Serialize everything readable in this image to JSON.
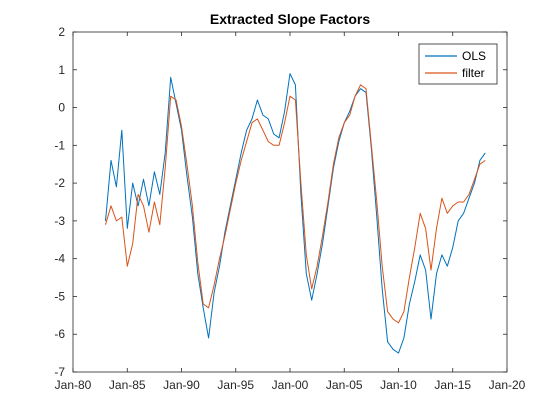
{
  "chart_data": {
    "type": "line",
    "title": "Extracted Slope Factors",
    "xlabel": "",
    "ylabel": "",
    "xlim": [
      "Jan-80",
      "Jan-20"
    ],
    "ylim": [
      -7,
      2
    ],
    "x_tick_labels": [
      "Jan-80",
      "Jan-85",
      "Jan-90",
      "Jan-95",
      "Jan-00",
      "Jan-05",
      "Jan-10",
      "Jan-15",
      "Jan-20"
    ],
    "y_ticks": [
      2,
      1,
      0,
      -1,
      -2,
      -3,
      -4,
      -5,
      -6,
      -7
    ],
    "grid": false,
    "legend_position": "top-right",
    "series": [
      {
        "name": "OLS",
        "color": "#0072BD",
        "points": [
          [
            "Jan-83",
            -3.0
          ],
          [
            "Jul-83",
            -1.4
          ],
          [
            "Jan-84",
            -2.1
          ],
          [
            "Jul-84",
            -0.6
          ],
          [
            "Jan-85",
            -3.2
          ],
          [
            "Jul-85",
            -2.0
          ],
          [
            "Jan-86",
            -2.6
          ],
          [
            "Jul-86",
            -1.9
          ],
          [
            "Jan-87",
            -2.6
          ],
          [
            "Jul-87",
            -1.7
          ],
          [
            "Jan-88",
            -2.3
          ],
          [
            "Jul-88",
            -1.2
          ],
          [
            "Jan-89",
            0.8
          ],
          [
            "Jul-89",
            0.1
          ],
          [
            "Jan-90",
            -0.6
          ],
          [
            "Jul-90",
            -1.8
          ],
          [
            "Jan-91",
            -2.9
          ],
          [
            "Jul-91",
            -4.4
          ],
          [
            "Jan-92",
            -5.3
          ],
          [
            "Jul-92",
            -6.1
          ],
          [
            "Jan-93",
            -4.9
          ],
          [
            "Jul-93",
            -4.2
          ],
          [
            "Jan-94",
            -3.3
          ],
          [
            "Jul-94",
            -2.6
          ],
          [
            "Jan-95",
            -1.9
          ],
          [
            "Jul-95",
            -1.2
          ],
          [
            "Jan-96",
            -0.6
          ],
          [
            "Jul-96",
            -0.3
          ],
          [
            "Jan-97",
            0.2
          ],
          [
            "Jul-97",
            -0.2
          ],
          [
            "Jan-98",
            -0.3
          ],
          [
            "Jul-98",
            -0.7
          ],
          [
            "Jan-99",
            -0.8
          ],
          [
            "Jul-99",
            -0.1
          ],
          [
            "Jan-00",
            0.9
          ],
          [
            "Jul-00",
            0.6
          ],
          [
            "Jan-01",
            -2.3
          ],
          [
            "Jul-01",
            -4.4
          ],
          [
            "Jan-02",
            -5.1
          ],
          [
            "Jul-02",
            -4.4
          ],
          [
            "Jan-03",
            -3.6
          ],
          [
            "Jul-03",
            -2.6
          ],
          [
            "Jan-04",
            -1.6
          ],
          [
            "Jul-04",
            -0.9
          ],
          [
            "Jan-05",
            -0.4
          ],
          [
            "Jul-05",
            -0.1
          ],
          [
            "Jan-06",
            0.3
          ],
          [
            "Jul-06",
            0.5
          ],
          [
            "Jan-07",
            0.4
          ],
          [
            "Jul-07",
            -1.1
          ],
          [
            "Jan-08",
            -2.9
          ],
          [
            "Jul-08",
            -4.8
          ],
          [
            "Jan-09",
            -6.2
          ],
          [
            "Jul-09",
            -6.4
          ],
          [
            "Jan-10",
            -6.5
          ],
          [
            "Jul-10",
            -6.1
          ],
          [
            "Jan-11",
            -5.2
          ],
          [
            "Jul-11",
            -4.6
          ],
          [
            "Jan-12",
            -3.9
          ],
          [
            "Jul-12",
            -4.3
          ],
          [
            "Jan-13",
            -5.6
          ],
          [
            "Jul-13",
            -4.4
          ],
          [
            "Jan-14",
            -3.9
          ],
          [
            "Jul-14",
            -4.2
          ],
          [
            "Jan-15",
            -3.7
          ],
          [
            "Jul-15",
            -3.0
          ],
          [
            "Jan-16",
            -2.8
          ],
          [
            "Jul-16",
            -2.4
          ],
          [
            "Jan-17",
            -2.0
          ],
          [
            "Jul-17",
            -1.4
          ],
          [
            "Jan-18",
            -1.2
          ]
        ]
      },
      {
        "name": "filter",
        "color": "#D95319",
        "points": [
          [
            "Jan-83",
            -3.1
          ],
          [
            "Jul-83",
            -2.6
          ],
          [
            "Jan-84",
            -3.0
          ],
          [
            "Jul-84",
            -2.9
          ],
          [
            "Jan-85",
            -4.2
          ],
          [
            "Jul-85",
            -3.6
          ],
          [
            "Jan-86",
            -2.3
          ],
          [
            "Jul-86",
            -2.6
          ],
          [
            "Jan-87",
            -3.3
          ],
          [
            "Jul-87",
            -2.5
          ],
          [
            "Jan-88",
            -3.1
          ],
          [
            "Jul-88",
            -1.6
          ],
          [
            "Jan-89",
            0.3
          ],
          [
            "Jul-89",
            0.2
          ],
          [
            "Jan-90",
            -0.5
          ],
          [
            "Jul-90",
            -1.5
          ],
          [
            "Jan-91",
            -2.6
          ],
          [
            "Jul-91",
            -4.1
          ],
          [
            "Jan-92",
            -5.2
          ],
          [
            "Jul-92",
            -5.3
          ],
          [
            "Jan-93",
            -4.7
          ],
          [
            "Jul-93",
            -4.0
          ],
          [
            "Jan-94",
            -3.4
          ],
          [
            "Jul-94",
            -2.7
          ],
          [
            "Jan-95",
            -2.0
          ],
          [
            "Jul-95",
            -1.4
          ],
          [
            "Jan-96",
            -0.9
          ],
          [
            "Jul-96",
            -0.4
          ],
          [
            "Jan-97",
            -0.3
          ],
          [
            "Jul-97",
            -0.6
          ],
          [
            "Jan-98",
            -0.9
          ],
          [
            "Jul-98",
            -1.0
          ],
          [
            "Jan-99",
            -1.0
          ],
          [
            "Jul-99",
            -0.4
          ],
          [
            "Jan-00",
            0.3
          ],
          [
            "Jul-00",
            0.2
          ],
          [
            "Jan-01",
            -2.0
          ],
          [
            "Jul-01",
            -3.9
          ],
          [
            "Jan-02",
            -4.8
          ],
          [
            "Jul-02",
            -4.2
          ],
          [
            "Jan-03",
            -3.4
          ],
          [
            "Jul-03",
            -2.5
          ],
          [
            "Jan-04",
            -1.5
          ],
          [
            "Jul-04",
            -0.8
          ],
          [
            "Jan-05",
            -0.4
          ],
          [
            "Jul-05",
            -0.2
          ],
          [
            "Jan-06",
            0.3
          ],
          [
            "Jul-06",
            0.6
          ],
          [
            "Jan-07",
            0.5
          ],
          [
            "Jul-07",
            -1.0
          ],
          [
            "Jan-08",
            -2.5
          ],
          [
            "Jul-08",
            -4.2
          ],
          [
            "Jan-09",
            -5.4
          ],
          [
            "Jul-09",
            -5.6
          ],
          [
            "Jan-10",
            -5.7
          ],
          [
            "Jul-10",
            -5.4
          ],
          [
            "Jan-11",
            -4.5
          ],
          [
            "Jul-11",
            -3.7
          ],
          [
            "Jan-12",
            -2.8
          ],
          [
            "Jul-12",
            -3.2
          ],
          [
            "Jan-13",
            -4.3
          ],
          [
            "Jul-13",
            -3.2
          ],
          [
            "Jan-14",
            -2.4
          ],
          [
            "Jul-14",
            -2.8
          ],
          [
            "Jan-15",
            -2.6
          ],
          [
            "Jul-15",
            -2.5
          ],
          [
            "Jan-16",
            -2.5
          ],
          [
            "Jul-16",
            -2.3
          ],
          [
            "Jan-17",
            -1.9
          ],
          [
            "Jul-17",
            -1.5
          ],
          [
            "Jan-18",
            -1.4
          ]
        ]
      }
    ]
  }
}
